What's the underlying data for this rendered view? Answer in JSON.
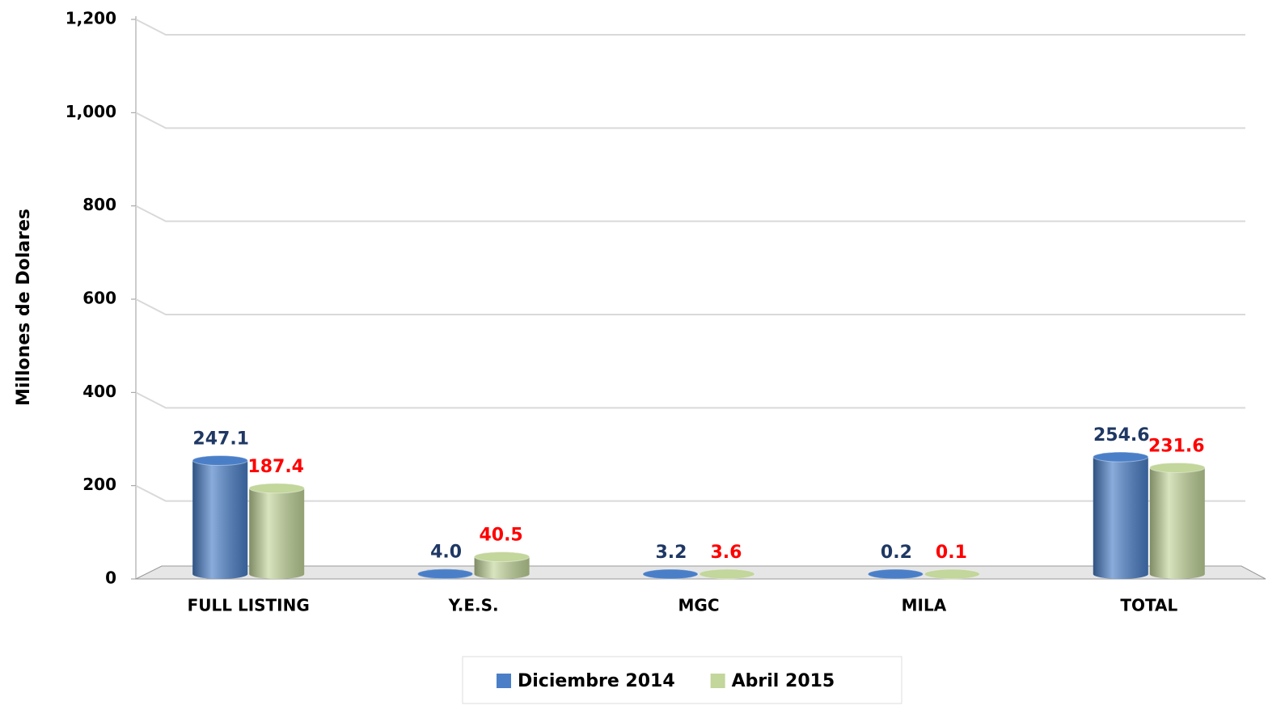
{
  "chart_data": {
    "type": "bar",
    "y_label": "Millones de Dolares",
    "categories": [
      "FULL LISTING",
      "Y.E.S.",
      "MGC",
      "MILA",
      "TOTAL"
    ],
    "series": [
      {
        "name": "Diciembre 2014",
        "color": "#4a7fc8",
        "label_color": "#1f3864",
        "values": [
          247.1,
          4.0,
          3.2,
          0.2,
          254.6
        ],
        "value_labels": [
          "247.1",
          "4.0",
          "3.2",
          "0.2",
          "254.6"
        ]
      },
      {
        "name": "Abril 2015",
        "color": "#c3d69b",
        "label_color": "#ff0000",
        "values": [
          187.4,
          40.5,
          3.6,
          0.1,
          231.6
        ],
        "value_labels": [
          "187.4",
          "40.5",
          "3.6",
          "0.1",
          "231.6"
        ]
      }
    ],
    "ylim": [
      0,
      1200
    ],
    "yticks": [
      0,
      200,
      400,
      600,
      800,
      {
        "value": 1000,
        "label": "1,000"
      },
      {
        "value": 1200,
        "label": "1,200"
      }
    ],
    "grid": true,
    "legend": "bottom"
  }
}
